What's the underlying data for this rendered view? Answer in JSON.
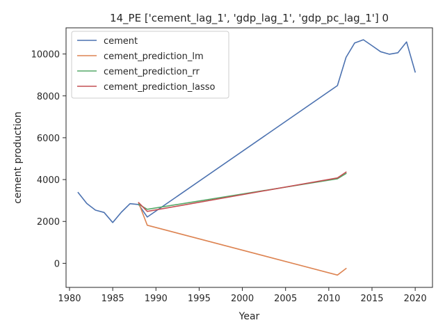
{
  "chart_data": {
    "type": "line",
    "title": "14_PE ['cement_lag_1', 'gdp_lag_1', 'gdp_pc_lag_1'] 0",
    "xlabel": "Year",
    "ylabel": "cement production",
    "xlim": [
      1979.6,
      2022.0
    ],
    "ylim": [
      -1150,
      11250
    ],
    "xticks": [
      1980,
      1985,
      1990,
      1995,
      2000,
      2005,
      2010,
      2015,
      2020
    ],
    "yticks": [
      0,
      2000,
      4000,
      6000,
      8000,
      10000
    ],
    "grid": false,
    "legend_position": "upper-left",
    "series": [
      {
        "name": "cement",
        "color": "#4c72b0",
        "x": [
          1981,
          1982,
          1983,
          1984,
          1985,
          1986,
          1987,
          1988,
          1989,
          2011,
          2012,
          2013,
          2014,
          2015,
          2016,
          2017,
          2018,
          2019,
          2020
        ],
        "y": [
          3380,
          2860,
          2540,
          2430,
          1950,
          2440,
          2850,
          2810,
          2210,
          8490,
          9840,
          10530,
          10680,
          10400,
          10110,
          9990,
          10060,
          10580,
          9140
        ]
      },
      {
        "name": "cement_prediction_lm",
        "color": "#dd8452",
        "x": [
          1988,
          1989,
          2011,
          2012
        ],
        "y": [
          2890,
          1820,
          -560,
          -250
        ]
      },
      {
        "name": "cement_prediction_rr",
        "color": "#55a868",
        "x": [
          1988,
          1989,
          2011,
          2012
        ],
        "y": [
          2820,
          2580,
          4040,
          4290
        ]
      },
      {
        "name": "cement_prediction_lasso",
        "color": "#c44e52",
        "x": [
          1988,
          1989,
          2011,
          2012
        ],
        "y": [
          2900,
          2480,
          4080,
          4360
        ]
      }
    ]
  }
}
